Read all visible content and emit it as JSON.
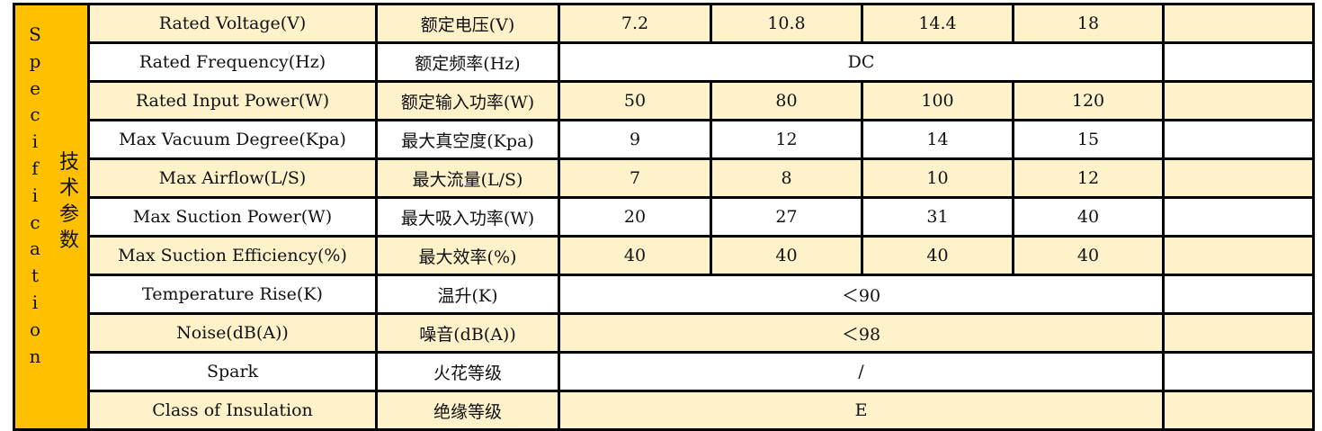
{
  "side_label_en": [
    "S",
    "p",
    "e",
    "c",
    "i",
    "f",
    "i",
    "c",
    "a",
    "t",
    "i",
    "o",
    "n"
  ],
  "side_label_zh": [
    "技",
    "术",
    "参",
    "数"
  ],
  "rows": [
    {
      "en": "Rated Voltage(V)",
      "zh": "额定电压(V)",
      "values": [
        "7.2",
        "10.8",
        "14.4",
        "18"
      ]
    },
    {
      "en": "Rated Frequency(Hz)",
      "zh": "额定频率(Hz)",
      "merged": "DC"
    },
    {
      "en": "Rated Input Power(W)",
      "zh": "额定输入功率(W)",
      "values": [
        "50",
        "80",
        "100",
        "120"
      ]
    },
    {
      "en": "Max Vacuum Degree(Kpa)",
      "zh": "最大真空度(Kpa)",
      "values": [
        "9",
        "12",
        "14",
        "15"
      ]
    },
    {
      "en": "Max Airflow(L/S)",
      "zh": "最大流量(L/S)",
      "values": [
        "7",
        "8",
        "10",
        "12"
      ]
    },
    {
      "en": "Max Suction Power(W)",
      "zh": "最大吸入功率(W)",
      "values": [
        "20",
        "27",
        "31",
        "40"
      ]
    },
    {
      "en": "Max Suction Efficiency(%)",
      "zh": "最大效率(%)",
      "values": [
        "40",
        "40",
        "40",
        "40"
      ]
    },
    {
      "en": "Temperature Rise(K)",
      "zh": "温升(K)",
      "merged": "＜90"
    },
    {
      "en": "Noise(dB(A))",
      "zh": "噪音(dB(A))",
      "merged": "＜98"
    },
    {
      "en": "Spark",
      "zh": "火花等级",
      "merged": "/"
    },
    {
      "en": "Class of Insulation",
      "zh": "绝缘等级",
      "merged": "E"
    }
  ],
  "colors": {
    "side": "#FFC000",
    "alt_row": "#FEF2CB",
    "border": "#000000"
  }
}
